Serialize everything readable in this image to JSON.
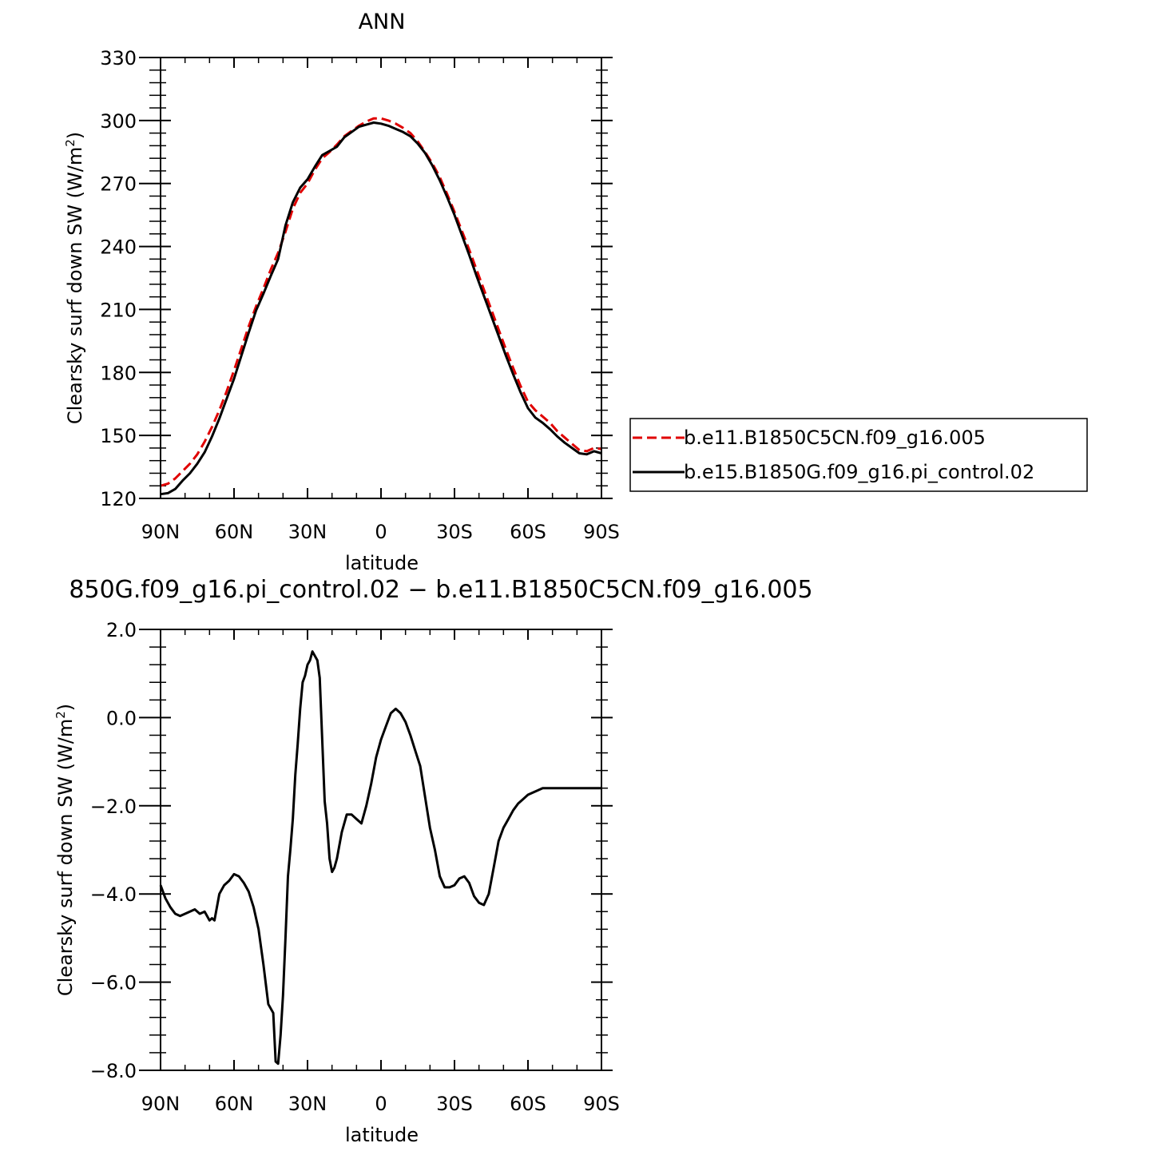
{
  "chart_data": [
    {
      "type": "line",
      "title": "ANN",
      "xlabel": "latitude",
      "ylabel": "Clearsky surf down SW (W/m²)",
      "ylabel_main": "Clearsky surf down SW (W/m",
      "ylabel_sup": "2",
      "ylabel_close": ")",
      "xlim": [
        90,
        -90
      ],
      "ylim": [
        120,
        330
      ],
      "xticks": [
        90,
        60,
        30,
        0,
        -30,
        -60,
        -90
      ],
      "xtick_labels": [
        "90N",
        "60N",
        "30N",
        "0",
        "30S",
        "60S",
        "90S"
      ],
      "yticks": [
        120,
        150,
        180,
        210,
        240,
        270,
        300,
        330
      ],
      "ytick_labels": [
        "120",
        "150",
        "180",
        "210",
        "240",
        "270",
        "300",
        "330"
      ],
      "legend_position": "right",
      "series": [
        {
          "name": "b.e11.B1850C5CN.f09_g16.005",
          "color": "#e00000",
          "dash": "dashed",
          "x": [
            90,
            87,
            84,
            81,
            78,
            75,
            72,
            69,
            66,
            63,
            60,
            57,
            54,
            51,
            48,
            45,
            42,
            39,
            36,
            33,
            30,
            27,
            24,
            21,
            18,
            15,
            12,
            9,
            6,
            3,
            0,
            -3,
            -6,
            -9,
            -12,
            -15,
            -18,
            -21,
            -24,
            -27,
            -30,
            -33,
            -36,
            -39,
            -42,
            -45,
            -48,
            -51,
            -54,
            -57,
            -60,
            -63,
            -66,
            -69,
            -72,
            -75,
            -78,
            -81,
            -84,
            -87,
            -90
          ],
          "y": [
            126.0,
            127.0,
            129.5,
            133.0,
            136.5,
            141.0,
            147.0,
            154.0,
            162.0,
            171.0,
            181.0,
            191.5,
            202.0,
            211.5,
            220.0,
            229.0,
            237.0,
            247.0,
            258.0,
            265.5,
            270.0,
            276.5,
            282.0,
            285.0,
            288.5,
            292.5,
            295.0,
            297.5,
            299.5,
            301.0,
            301.0,
            300.0,
            298.5,
            296.5,
            294.0,
            290.0,
            285.0,
            279.5,
            273.0,
            265.0,
            256.5,
            247.5,
            238.5,
            229.0,
            219.5,
            210.0,
            200.5,
            191.0,
            182.0,
            173.5,
            166.0,
            162.0,
            159.0,
            156.0,
            152.0,
            149.0,
            146.0,
            143.0,
            142.5,
            144.0,
            143.5
          ]
        },
        {
          "name": "b.e15.B1850G.f09_g16.pi_control.02",
          "color": "#000000",
          "dash": "solid",
          "x": [
            90,
            87,
            84,
            81,
            78,
            75,
            72,
            69,
            66,
            63,
            60,
            57,
            54,
            51,
            48,
            45,
            42,
            39,
            36,
            33,
            30,
            27,
            24,
            21,
            18,
            15,
            12,
            9,
            6,
            3,
            0,
            -3,
            -6,
            -9,
            -12,
            -15,
            -18,
            -21,
            -24,
            -27,
            -30,
            -33,
            -36,
            -39,
            -42,
            -45,
            -48,
            -51,
            -54,
            -57,
            -60,
            -63,
            -66,
            -69,
            -72,
            -75,
            -78,
            -81,
            -84,
            -87,
            -90
          ],
          "y": [
            122.0,
            122.5,
            124.5,
            128.5,
            132.0,
            136.5,
            142.0,
            149.5,
            158.0,
            167.5,
            177.0,
            188.0,
            199.0,
            209.5,
            217.5,
            226.0,
            234.0,
            250.0,
            261.0,
            268.0,
            272.0,
            278.0,
            283.5,
            285.5,
            287.5,
            292.0,
            294.5,
            297.0,
            298.0,
            299.0,
            298.5,
            297.5,
            296.0,
            294.5,
            292.5,
            289.0,
            284.5,
            278.5,
            271.5,
            263.5,
            255.0,
            245.5,
            236.0,
            226.0,
            216.5,
            207.0,
            197.5,
            188.0,
            179.0,
            170.5,
            163.0,
            158.5,
            156.0,
            153.0,
            149.5,
            146.5,
            144.0,
            141.5,
            141.0,
            142.5,
            141.5
          ]
        }
      ]
    },
    {
      "type": "line",
      "title": "850G.f09_g16.pi_control.02 − b.e11.B1850C5CN.f09_g16.005",
      "xlabel": "latitude",
      "ylabel": "Clearsky surf down SW (W/m²)",
      "ylabel_main": "Clearsky surf down SW (W/m",
      "ylabel_sup": "2",
      "ylabel_close": ")",
      "xlim": [
        90,
        -90
      ],
      "ylim": [
        -8.0,
        2.0
      ],
      "xticks": [
        90,
        60,
        30,
        0,
        -30,
        -60,
        -90
      ],
      "xtick_labels": [
        "90N",
        "60N",
        "30N",
        "0",
        "30S",
        "60S",
        "90S"
      ],
      "yticks": [
        -8.0,
        -6.0,
        -4.0,
        -2.0,
        0.0,
        2.0
      ],
      "ytick_labels": [
        "−8.0",
        "−6.0",
        "−4.0",
        "−2.0",
        "0.0",
        "2.0"
      ],
      "series": [
        {
          "color": "#000000",
          "dash": "solid",
          "x": [
            90,
            88,
            86,
            84,
            82,
            80,
            78,
            76,
            74,
            72,
            70,
            69,
            68,
            66,
            64,
            62,
            60,
            58,
            56,
            54,
            52,
            50,
            48,
            46,
            45,
            44,
            43,
            42,
            41,
            40,
            39,
            38,
            37,
            36,
            35,
            34,
            33,
            32,
            31,
            30,
            29,
            28,
            27,
            26,
            25,
            24,
            23,
            22,
            21,
            20,
            19,
            18,
            16,
            14,
            12,
            10,
            8,
            6,
            4,
            2,
            0,
            -2,
            -4,
            -6,
            -8,
            -10,
            -12,
            -14,
            -16,
            -18,
            -20,
            -22,
            -24,
            -26,
            -28,
            -30,
            -32,
            -34,
            -36,
            -38,
            -40,
            -42,
            -44,
            -46,
            -48,
            -50,
            -52,
            -54,
            -56,
            -58,
            -60,
            -62,
            -64,
            -66,
            -68,
            -70,
            -72,
            -74,
            -76,
            -78,
            -80,
            -82,
            -84,
            -86,
            -88,
            -90
          ],
          "y": [
            -3.8,
            -4.1,
            -4.3,
            -4.45,
            -4.5,
            -4.45,
            -4.4,
            -4.35,
            -4.45,
            -4.4,
            -4.6,
            -4.55,
            -4.6,
            -4.0,
            -3.8,
            -3.7,
            -3.55,
            -3.6,
            -3.75,
            -3.95,
            -4.3,
            -4.8,
            -5.6,
            -6.5,
            -6.6,
            -6.7,
            -7.8,
            -7.85,
            -7.2,
            -6.3,
            -5.0,
            -3.6,
            -3.0,
            -2.3,
            -1.3,
            -0.6,
            0.2,
            0.8,
            0.95,
            1.2,
            1.3,
            1.5,
            1.4,
            1.3,
            0.9,
            -0.5,
            -1.9,
            -2.4,
            -3.2,
            -3.5,
            -3.4,
            -3.2,
            -2.6,
            -2.2,
            -2.2,
            -2.3,
            -2.4,
            -2.0,
            -1.5,
            -0.9,
            -0.5,
            -0.2,
            0.1,
            0.2,
            0.1,
            -0.1,
            -0.4,
            -0.75,
            -1.1,
            -1.8,
            -2.5,
            -3.0,
            -3.6,
            -3.85,
            -3.85,
            -3.8,
            -3.65,
            -3.6,
            -3.75,
            -4.05,
            -4.2,
            -4.25,
            -4.0,
            -3.4,
            -2.8,
            -2.5,
            -2.3,
            -2.1,
            -1.95,
            -1.85,
            -1.75,
            -1.7,
            -1.65,
            -1.6,
            -1.6,
            -1.6,
            -1.6,
            -1.6,
            -1.6,
            -1.6,
            -1.6,
            -1.6,
            -1.6,
            -1.6,
            -1.6,
            -1.6
          ]
        }
      ]
    }
  ]
}
